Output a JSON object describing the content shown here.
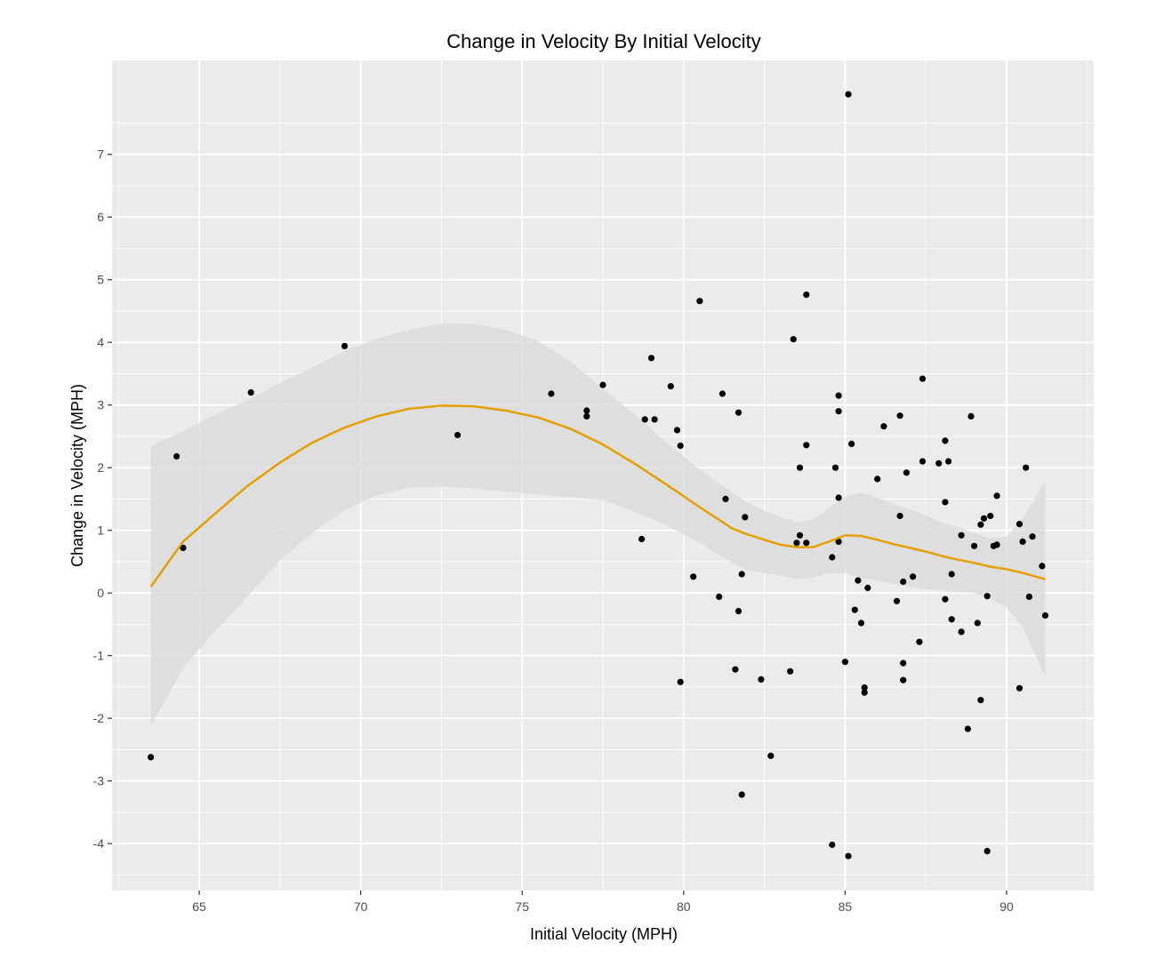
{
  "chart_data": {
    "type": "scatter",
    "title": "Change in Velocity By Initial Velocity",
    "xlabel": "Initial Velocity (MPH)",
    "ylabel": "Change in Velocity (MPH)",
    "xlim": [
      62.3,
      92.7
    ],
    "ylim": [
      -4.75,
      8.5
    ],
    "x_ticks": [
      65,
      70,
      75,
      80,
      85,
      90
    ],
    "x_tick_labels": [
      "65",
      "70",
      "75",
      "80",
      "85",
      "90"
    ],
    "y_ticks": [
      -4,
      -3,
      -2,
      -1,
      0,
      1,
      2,
      3,
      4,
      5,
      6,
      7
    ],
    "y_tick_labels": [
      "-4",
      "-3",
      "-2",
      "-1",
      "0",
      "1",
      "2",
      "3",
      "4",
      "5",
      "6",
      "7"
    ],
    "grid": true,
    "legend": "none",
    "colors": {
      "panel_background": "#ebebeb",
      "grid": "#ffffff",
      "points": "#000000",
      "smooth_line": "#e69f00",
      "confidence_band": "#dadada"
    },
    "points": [
      [
        63.5,
        -2.62
      ],
      [
        64.3,
        2.18
      ],
      [
        64.5,
        0.72
      ],
      [
        66.6,
        3.2
      ],
      [
        69.5,
        3.94
      ],
      [
        73.0,
        2.52
      ],
      [
        75.9,
        3.18
      ],
      [
        77.0,
        2.82
      ],
      [
        77.0,
        2.91
      ],
      [
        77.5,
        3.32
      ],
      [
        78.7,
        0.86
      ],
      [
        78.8,
        2.77
      ],
      [
        79.0,
        3.75
      ],
      [
        79.1,
        2.77
      ],
      [
        79.6,
        3.3
      ],
      [
        79.8,
        2.6
      ],
      [
        79.9,
        2.35
      ],
      [
        79.9,
        -1.42
      ],
      [
        80.3,
        0.26
      ],
      [
        80.5,
        4.66
      ],
      [
        81.1,
        -0.06
      ],
      [
        81.2,
        3.18
      ],
      [
        81.3,
        1.5
      ],
      [
        81.6,
        -1.22
      ],
      [
        81.7,
        -0.29
      ],
      [
        81.7,
        2.88
      ],
      [
        81.8,
        0.3
      ],
      [
        81.8,
        -3.22
      ],
      [
        81.9,
        1.21
      ],
      [
        82.4,
        -1.38
      ],
      [
        82.7,
        -2.6
      ],
      [
        83.3,
        -1.25
      ],
      [
        83.4,
        4.05
      ],
      [
        83.5,
        0.8
      ],
      [
        83.6,
        0.92
      ],
      [
        83.6,
        2.0
      ],
      [
        83.8,
        2.36
      ],
      [
        83.8,
        4.76
      ],
      [
        83.8,
        0.8
      ],
      [
        84.6,
        0.57
      ],
      [
        84.7,
        2.0
      ],
      [
        84.6,
        -4.02
      ],
      [
        84.8,
        0.82
      ],
      [
        84.8,
        1.52
      ],
      [
        84.8,
        3.15
      ],
      [
        84.8,
        2.9
      ],
      [
        85.0,
        -1.1
      ],
      [
        85.1,
        -4.2
      ],
      [
        85.1,
        7.96
      ],
      [
        85.2,
        2.38
      ],
      [
        85.3,
        -0.27
      ],
      [
        85.4,
        0.2
      ],
      [
        85.5,
        -0.48
      ],
      [
        85.6,
        -1.51
      ],
      [
        85.6,
        -1.59
      ],
      [
        85.7,
        0.08
      ],
      [
        86.0,
        1.82
      ],
      [
        86.2,
        2.66
      ],
      [
        86.6,
        -0.13
      ],
      [
        86.7,
        2.83
      ],
      [
        86.7,
        1.23
      ],
      [
        86.8,
        -1.12
      ],
      [
        86.8,
        -1.39
      ],
      [
        86.8,
        0.18
      ],
      [
        86.9,
        1.92
      ],
      [
        87.1,
        0.26
      ],
      [
        87.3,
        -0.78
      ],
      [
        87.4,
        2.1
      ],
      [
        87.4,
        3.42
      ],
      [
        87.9,
        2.07
      ],
      [
        88.1,
        1.45
      ],
      [
        88.1,
        2.43
      ],
      [
        88.1,
        -0.1
      ],
      [
        88.2,
        2.1
      ],
      [
        88.3,
        -0.42
      ],
      [
        88.3,
        0.3
      ],
      [
        88.6,
        0.92
      ],
      [
        88.6,
        -0.62
      ],
      [
        88.8,
        -2.17
      ],
      [
        88.9,
        2.82
      ],
      [
        89.0,
        0.75
      ],
      [
        89.1,
        -0.48
      ],
      [
        89.2,
        1.09
      ],
      [
        89.2,
        -1.71
      ],
      [
        89.3,
        1.19
      ],
      [
        89.4,
        -0.05
      ],
      [
        89.4,
        -4.12
      ],
      [
        89.5,
        1.23
      ],
      [
        89.6,
        0.75
      ],
      [
        89.7,
        0.77
      ],
      [
        89.7,
        1.55
      ],
      [
        90.4,
        -1.52
      ],
      [
        90.4,
        1.1
      ],
      [
        90.5,
        0.82
      ],
      [
        90.6,
        2.0
      ],
      [
        90.7,
        -0.06
      ],
      [
        90.8,
        0.9
      ],
      [
        91.1,
        0.43
      ],
      [
        91.2,
        -0.36
      ]
    ],
    "smooth": {
      "x": [
        63.5,
        64.5,
        65.5,
        66.5,
        67.5,
        68.5,
        69.5,
        70.5,
        71.5,
        72.5,
        73.5,
        74.5,
        75.5,
        76.5,
        77.5,
        78.5,
        79.5,
        80.5,
        81.0,
        81.5,
        82.0,
        82.5,
        83.0,
        83.5,
        84.0,
        84.5,
        85.0,
        85.5,
        86.0,
        86.5,
        87.0,
        87.5,
        88.0,
        88.5,
        89.0,
        89.5,
        90.0,
        90.5,
        91.2
      ],
      "y": [
        0.1,
        0.82,
        1.27,
        1.71,
        2.08,
        2.4,
        2.64,
        2.82,
        2.94,
        2.99,
        2.98,
        2.91,
        2.8,
        2.62,
        2.37,
        2.06,
        1.72,
        1.37,
        1.2,
        1.03,
        0.93,
        0.85,
        0.77,
        0.73,
        0.73,
        0.82,
        0.92,
        0.91,
        0.85,
        0.78,
        0.72,
        0.66,
        0.59,
        0.53,
        0.48,
        0.42,
        0.38,
        0.32,
        0.22
      ],
      "upper": [
        2.34,
        2.58,
        2.85,
        3.08,
        3.35,
        3.6,
        3.86,
        4.06,
        4.2,
        4.3,
        4.29,
        4.2,
        4.02,
        3.69,
        3.26,
        2.84,
        2.39,
        1.97,
        1.78,
        1.6,
        1.44,
        1.31,
        1.21,
        1.13,
        1.17,
        1.36,
        1.54,
        1.6,
        1.52,
        1.42,
        1.33,
        1.24,
        1.12,
        1.05,
        0.96,
        0.87,
        0.9,
        1.18,
        1.78
      ],
      "lower": [
        -2.13,
        -1.2,
        -0.6,
        -0.05,
        0.52,
        0.96,
        1.32,
        1.56,
        1.68,
        1.7,
        1.67,
        1.62,
        1.57,
        1.53,
        1.48,
        1.3,
        1.07,
        0.8,
        0.64,
        0.48,
        0.36,
        0.32,
        0.28,
        0.22,
        0.25,
        0.31,
        0.32,
        0.24,
        0.2,
        0.15,
        0.1,
        0.06,
        0.04,
        0.01,
        0.0,
        -0.09,
        -0.23,
        -0.55,
        -1.33
      ]
    }
  }
}
